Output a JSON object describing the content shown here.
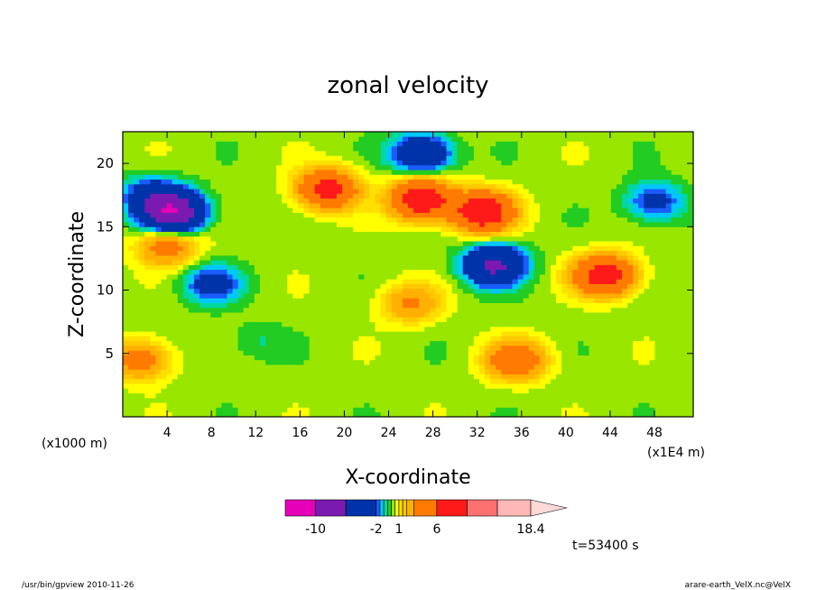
{
  "chart_data": {
    "type": "heatmap",
    "title": "zonal velocity",
    "xlabel": "X-coordinate",
    "ylabel": "Z-coordinate",
    "x_unit_left": "(x1000 m)",
    "x_unit_right": "(x1E4 m)",
    "xlim": [
      0,
      51.5
    ],
    "ylim": [
      0,
      22.5
    ],
    "x_ticks": [
      4,
      8,
      12,
      16,
      20,
      24,
      28,
      32,
      36,
      40,
      44,
      48
    ],
    "y_ticks": [
      5,
      10,
      15,
      20
    ],
    "time_label": "t=53400 s",
    "colorbar": {
      "levels": [
        -14,
        -10,
        -6,
        -2,
        -1.5,
        -1,
        -0.5,
        0,
        0.5,
        1,
        1.5,
        2,
        3,
        6,
        10,
        14,
        18.4
      ],
      "tick_values": [
        -10,
        -2,
        1,
        6,
        18.4
      ],
      "tick_labels": [
        "-10",
        "-2",
        "1",
        "6",
        "18.4"
      ],
      "colors": [
        "#e600b8",
        "#7a1ab0",
        "#0033aa",
        "#1a5cff",
        "#00c8ff",
        "#00d8a0",
        "#22cc22",
        "#99e600",
        "#ffff00",
        "#ffe000",
        "#ffc800",
        "#ffb000",
        "#ff7a00",
        "#ff1a1a",
        "#ff7070",
        "#ffb8b8"
      ]
    },
    "features": [
      {
        "x": 4.5,
        "z": 16.2,
        "u": -10
      },
      {
        "x": 2.5,
        "z": 17.5,
        "u": -3
      },
      {
        "x": 18.5,
        "z": 18.0,
        "u": 7
      },
      {
        "x": 27.0,
        "z": 17.2,
        "u": 9
      },
      {
        "x": 32.5,
        "z": 16.2,
        "u": 9
      },
      {
        "x": 33.5,
        "z": 12.0,
        "u": -7
      },
      {
        "x": 27.0,
        "z": 20.8,
        "u": -5
      },
      {
        "x": 43.5,
        "z": 11.2,
        "u": 8
      },
      {
        "x": 48.0,
        "z": 17.0,
        "u": -3
      },
      {
        "x": 35.5,
        "z": 4.5,
        "u": 5
      },
      {
        "x": 8.0,
        "z": 10.5,
        "u": -3
      },
      {
        "x": 12.0,
        "z": 6.0,
        "u": -0.8
      },
      {
        "x": 26.0,
        "z": 9.0,
        "u": 3
      },
      {
        "x": 1.5,
        "z": 4.5,
        "u": 4
      },
      {
        "x": 4.0,
        "z": 13.5,
        "u": 4
      }
    ]
  },
  "footer": {
    "left": "/usr/bin/gpview   2010-11-26",
    "right": "arare-earth_VelX.nc@VelX"
  }
}
